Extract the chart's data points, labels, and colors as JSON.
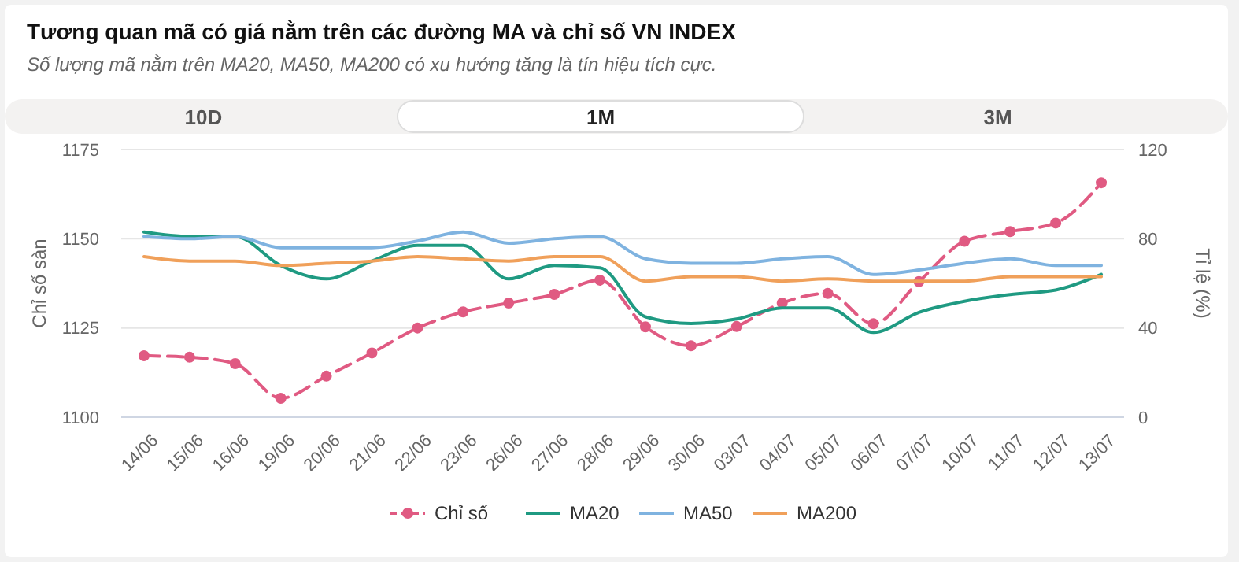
{
  "chart_data": {
    "type": "line",
    "title": "Tương quan mã có giá nằm trên các đường MA và chỉ số VN INDEX",
    "subtitle": "Số lượng mã nằm trên MA20, MA50, MA200 có xu hướng tăng là tín hiệu tích cực.",
    "annotations": [
      "10D",
      "1M",
      "3M"
    ],
    "categories": [
      "14/06",
      "15/06",
      "16/06",
      "19/06",
      "20/06",
      "21/06",
      "22/06",
      "23/06",
      "26/06",
      "27/06",
      "28/06",
      "29/06",
      "30/06",
      "03/07",
      "04/07",
      "05/07",
      "06/07",
      "07/07",
      "10/07",
      "11/07",
      "12/07",
      "13/07"
    ],
    "series": [
      {
        "name": "Chỉ số",
        "color": "#e05a82",
        "marker": "circle",
        "line_style": "dashed",
        "values": [
          1117.2,
          1116.8,
          1115,
          1105.3,
          1111.5,
          1118,
          1125,
          1129.5,
          1132,
          1134.4,
          1138.4,
          1125.3,
          1120,
          1125.4,
          1132,
          1134.7,
          1126.2,
          1138,
          1149.3,
          1152,
          1154.4,
          1165.7
        ]
      },
      {
        "name": "MA20",
        "color": "#1f9a82",
        "axis": "y2",
        "values": [
          83,
          81,
          81,
          68,
          62,
          70,
          77,
          77,
          62,
          68,
          67,
          45,
          42,
          44,
          49,
          49,
          38,
          47,
          52,
          55,
          57,
          64
        ]
      },
      {
        "name": "MA50",
        "color": "#7fb3e0",
        "axis": "y2",
        "values": [
          81,
          80,
          81,
          76,
          76,
          76,
          79,
          83,
          78,
          80,
          81,
          71,
          69,
          69,
          71,
          72,
          64,
          66,
          69,
          71,
          68,
          68
        ]
      },
      {
        "name": "MA200",
        "color": "#f0a05a",
        "axis": "y2",
        "values": [
          72,
          70,
          70,
          68,
          69,
          70,
          72,
          71,
          70,
          72,
          72,
          61,
          63,
          63,
          61,
          62,
          61,
          61,
          61,
          63,
          63,
          63
        ]
      }
    ],
    "ylabel": "Chỉ số sàn",
    "y2label": "Tỉ lệ (%)",
    "ylim": [
      1100,
      1175
    ],
    "yticks": [
      1100,
      1125,
      1150,
      1175
    ],
    "y2lim": [
      0,
      120
    ],
    "y2ticks": [
      0,
      40,
      80,
      120
    ],
    "grid": "y",
    "legend": "bottom"
  }
}
